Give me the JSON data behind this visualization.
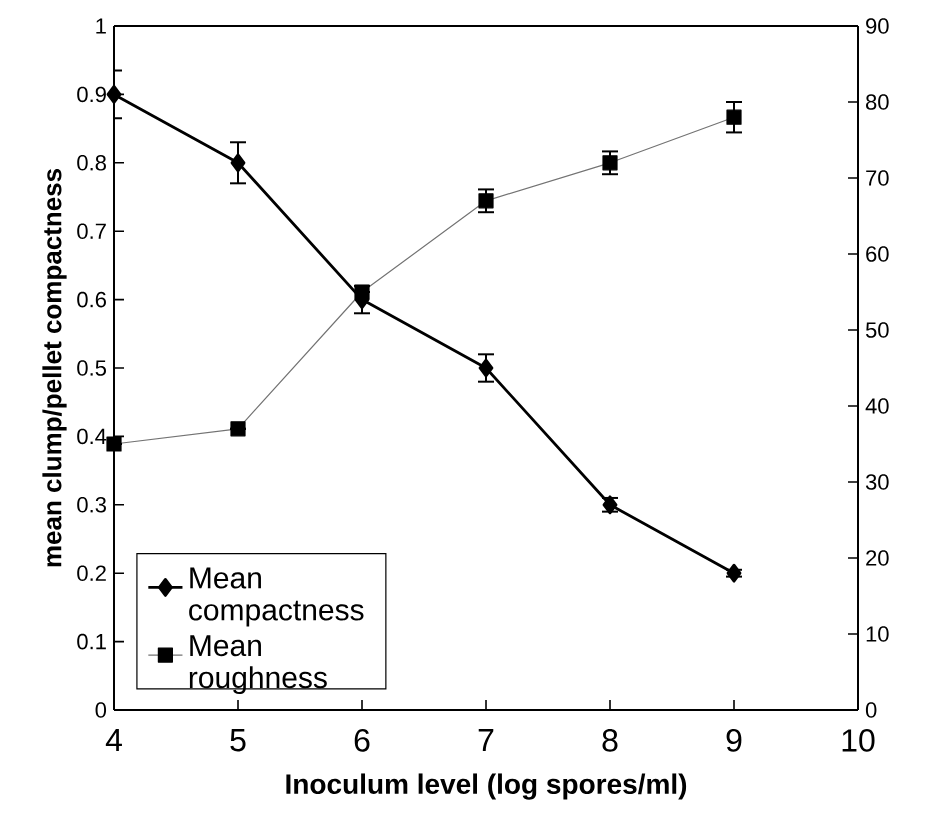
{
  "chart_data": {
    "type": "line",
    "xlabel": "Inoculum level (log spores/ml)",
    "ylabel": "mean clump/pellet compactness",
    "x": [
      4,
      5,
      6,
      7,
      8,
      9
    ],
    "series": [
      {
        "name": "Mean compactness",
        "color": "#000000",
        "marker": "diamond",
        "values": [
          0.9,
          0.8,
          0.6,
          0.5,
          0.3,
          0.2
        ],
        "errors": [
          0.035,
          0.03,
          0.02,
          0.02,
          0.01,
          0.005
        ]
      },
      {
        "name": "Mean roughness",
        "color": "#000000",
        "marker": "square",
        "axis": "y2",
        "values": [
          35,
          37,
          55,
          67,
          72,
          78
        ],
        "errors": [
          null,
          null,
          null,
          1.5,
          1.5,
          2
        ]
      }
    ],
    "xlim": [
      4,
      10
    ],
    "xticks": [
      4,
      5,
      6,
      7,
      8,
      9,
      10
    ],
    "ylim": [
      0,
      1
    ],
    "yticks": [
      0,
      0.1,
      0.2,
      0.3,
      0.4,
      0.5,
      0.6,
      0.7,
      0.8,
      0.9,
      1
    ],
    "y2lim": [
      0,
      90
    ],
    "y2ticks": [
      0,
      10,
      20,
      30,
      40,
      50,
      60,
      70,
      80,
      90
    ],
    "legend": "bottom left",
    "grid": false
  }
}
